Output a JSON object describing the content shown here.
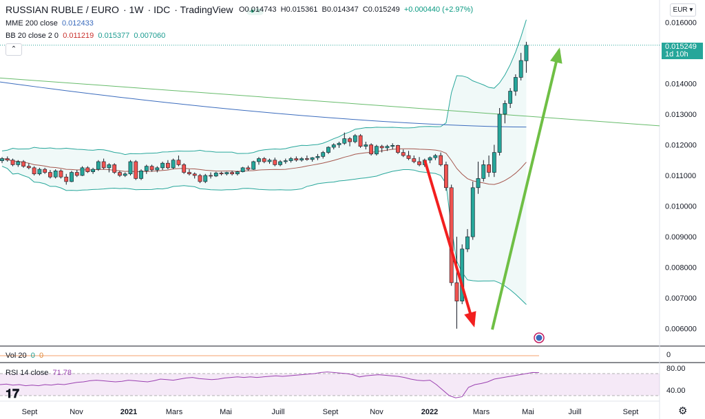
{
  "header": {
    "symbol": "RUSSIAN RUBLE / EURO",
    "interval": "1W",
    "exchange": "IDC",
    "source": "TradingView",
    "dots_icon": "market-status-icon",
    "ohlc": {
      "open": "O0.014743",
      "high": "H0.015361",
      "low": "B0.014347",
      "close": "C0.015249",
      "change": "+0.000440 (+2.97%)"
    }
  },
  "indicators": {
    "ema": {
      "label": "MME 200 close",
      "value": "0.012433"
    },
    "bb": {
      "label": "BB 20 close 2 0",
      "basis": "0.011219",
      "upper": "0.015377",
      "lower": "0.007060"
    },
    "vol": {
      "label": "Vol 20",
      "v1": "0",
      "v2": "0"
    },
    "rsi": {
      "label": "RSI 14 close",
      "value": "71.78"
    }
  },
  "controls": {
    "currency": "EUR",
    "collapse": "⌃",
    "price_tag_value": "0.015249",
    "price_tag_time": "1d 10h"
  },
  "colors": {
    "up": "#26a69a",
    "down": "#ef5350",
    "ema": "#3a6bbd",
    "sma_green": "#66bb6a",
    "bb_band": "#26a69a",
    "bb_basis": "#a5564d",
    "rsi": "#9a3fb0",
    "arrow_down": "#f21f1f",
    "arrow_up": "#6fbf45"
  },
  "chart_data": {
    "type": "candlestick",
    "price_axis": {
      "min": 0.0055,
      "max": 0.0165,
      "ticks": [
        "0.016000",
        "0.015000",
        "0.014000",
        "0.013000",
        "0.012000",
        "0.011000",
        "0.010000",
        "0.009000",
        "0.008000",
        "0.007000",
        "0.006000"
      ]
    },
    "rsi_axis": {
      "ticks": [
        "80.00",
        "40.00"
      ]
    },
    "vol_axis": {
      "ticks": [
        "0"
      ]
    },
    "time_labels": [
      "Sept",
      "Nov",
      "2021",
      "Mars",
      "Mai",
      "Juill",
      "Sept",
      "Nov",
      "2022",
      "Mars",
      "Mai",
      "Juill",
      "Sept"
    ],
    "candles": [
      [
        0.01148,
        0.0116,
        0.0114,
        0.01155
      ],
      [
        0.01155,
        0.01162,
        0.01145,
        0.0115
      ],
      [
        0.0115,
        0.01155,
        0.0113,
        0.01135
      ],
      [
        0.01135,
        0.0115,
        0.01128,
        0.01145
      ],
      [
        0.01145,
        0.0115,
        0.01125,
        0.0113
      ],
      [
        0.0113,
        0.0114,
        0.0112,
        0.01125
      ],
      [
        0.01125,
        0.0113,
        0.011,
        0.01105
      ],
      [
        0.01105,
        0.01125,
        0.011,
        0.0112
      ],
      [
        0.0112,
        0.01125,
        0.01105,
        0.0111
      ],
      [
        0.0111,
        0.01118,
        0.0109,
        0.01095
      ],
      [
        0.01095,
        0.0112,
        0.0109,
        0.01115
      ],
      [
        0.01115,
        0.0112,
        0.0109,
        0.01095
      ],
      [
        0.01095,
        0.01105,
        0.0107,
        0.0108
      ],
      [
        0.0108,
        0.01115,
        0.01078,
        0.0111
      ],
      [
        0.0111,
        0.01118,
        0.01095,
        0.011
      ],
      [
        0.011,
        0.0113,
        0.01098,
        0.01125
      ],
      [
        0.01125,
        0.0113,
        0.01108,
        0.01112
      ],
      [
        0.01112,
        0.01125,
        0.01105,
        0.0112
      ],
      [
        0.0112,
        0.0115,
        0.01115,
        0.01145
      ],
      [
        0.01145,
        0.01155,
        0.0112,
        0.01125
      ],
      [
        0.01125,
        0.0114,
        0.0111,
        0.01135
      ],
      [
        0.01135,
        0.0114,
        0.01105,
        0.0111
      ],
      [
        0.0111,
        0.01115,
        0.01095,
        0.011
      ],
      [
        0.011,
        0.0111,
        0.01095,
        0.01105
      ],
      [
        0.01105,
        0.0115,
        0.011,
        0.01145
      ],
      [
        0.01145,
        0.0115,
        0.01085,
        0.0109
      ],
      [
        0.0109,
        0.0112,
        0.01085,
        0.01115
      ],
      [
        0.01115,
        0.01135,
        0.01105,
        0.0113
      ],
      [
        0.0113,
        0.01135,
        0.01112,
        0.01118
      ],
      [
        0.01118,
        0.0113,
        0.0111,
        0.01125
      ],
      [
        0.01125,
        0.01145,
        0.01118,
        0.0114
      ],
      [
        0.0114,
        0.0115,
        0.0112,
        0.01125
      ],
      [
        0.01125,
        0.01155,
        0.0112,
        0.0115
      ],
      [
        0.0115,
        0.01165,
        0.0113,
        0.01135
      ],
      [
        0.01135,
        0.0114,
        0.01105,
        0.0111
      ],
      [
        0.0111,
        0.0112,
        0.011,
        0.01105
      ],
      [
        0.01105,
        0.0111,
        0.0109,
        0.011
      ],
      [
        0.011,
        0.01105,
        0.01075,
        0.0108
      ],
      [
        0.0108,
        0.01105,
        0.01075,
        0.011
      ],
      [
        0.011,
        0.0111,
        0.0109,
        0.01098
      ],
      [
        0.01098,
        0.01112,
        0.01095,
        0.01108
      ],
      [
        0.01108,
        0.01112,
        0.011,
        0.01105
      ],
      [
        0.01105,
        0.01112,
        0.011,
        0.0111
      ],
      [
        0.0111,
        0.01115,
        0.011,
        0.01105
      ],
      [
        0.01105,
        0.01115,
        0.011,
        0.01112
      ],
      [
        0.01112,
        0.01128,
        0.0111,
        0.01125
      ],
      [
        0.01125,
        0.01132,
        0.01115,
        0.0112
      ],
      [
        0.0112,
        0.01148,
        0.01118,
        0.01145
      ],
      [
        0.01145,
        0.0116,
        0.01135,
        0.01155
      ],
      [
        0.01155,
        0.0116,
        0.0114,
        0.01145
      ],
      [
        0.01145,
        0.01155,
        0.01138,
        0.0115
      ],
      [
        0.0115,
        0.01158,
        0.0113,
        0.01135
      ],
      [
        0.01135,
        0.0115,
        0.0113,
        0.01145
      ],
      [
        0.01145,
        0.01155,
        0.01138,
        0.01148
      ],
      [
        0.01148,
        0.0116,
        0.01142,
        0.01155
      ],
      [
        0.01155,
        0.01162,
        0.01145,
        0.0115
      ],
      [
        0.0115,
        0.0116,
        0.01145,
        0.01155
      ],
      [
        0.01155,
        0.01165,
        0.01148,
        0.01152
      ],
      [
        0.01152,
        0.0116,
        0.01145,
        0.01158
      ],
      [
        0.01158,
        0.0117,
        0.0115,
        0.01162
      ],
      [
        0.01162,
        0.0118,
        0.01155,
        0.01175
      ],
      [
        0.01175,
        0.01195,
        0.0117,
        0.01192
      ],
      [
        0.01192,
        0.01205,
        0.01185,
        0.012
      ],
      [
        0.012,
        0.0121,
        0.0119,
        0.01205
      ],
      [
        0.01205,
        0.0124,
        0.012,
        0.0122
      ],
      [
        0.0122,
        0.01225,
        0.01195,
        0.0121
      ],
      [
        0.0121,
        0.01235,
        0.01205,
        0.0123
      ],
      [
        0.0123,
        0.01235,
        0.0119,
        0.01195
      ],
      [
        0.01195,
        0.0121,
        0.01185,
        0.012
      ],
      [
        0.012,
        0.01205,
        0.01165,
        0.0117
      ],
      [
        0.0117,
        0.012,
        0.01165,
        0.01195
      ],
      [
        0.01195,
        0.012,
        0.01175,
        0.0119
      ],
      [
        0.0119,
        0.012,
        0.0118,
        0.01195
      ],
      [
        0.01195,
        0.01205,
        0.01185,
        0.01198
      ],
      [
        0.01198,
        0.012,
        0.0117,
        0.01175
      ],
      [
        0.01175,
        0.01185,
        0.0116,
        0.01165
      ],
      [
        0.01165,
        0.0118,
        0.0115,
        0.01155
      ],
      [
        0.01155,
        0.01165,
        0.0114,
        0.01145
      ],
      [
        0.01145,
        0.0116,
        0.0113,
        0.01135
      ],
      [
        0.01135,
        0.01155,
        0.01128,
        0.0115
      ],
      [
        0.0115,
        0.01162,
        0.0114,
        0.01158
      ],
      [
        0.01158,
        0.0117,
        0.0115,
        0.01165
      ],
      [
        0.01165,
        0.01175,
        0.0113,
        0.01135
      ],
      [
        0.01135,
        0.01145,
        0.0105,
        0.0106
      ],
      [
        0.0106,
        0.0107,
        0.0074,
        0.0075
      ],
      [
        0.0075,
        0.009,
        0.006,
        0.0069
      ],
      [
        0.0069,
        0.00875,
        0.0068,
        0.0086
      ],
      [
        0.0086,
        0.00925,
        0.0085,
        0.009
      ],
      [
        0.009,
        0.0108,
        0.0089,
        0.0106
      ],
      [
        0.0106,
        0.01145,
        0.0104,
        0.0109
      ],
      [
        0.0109,
        0.0115,
        0.0108,
        0.01135
      ],
      [
        0.01135,
        0.01165,
        0.01095,
        0.0111
      ],
      [
        0.0111,
        0.012,
        0.01095,
        0.01175
      ],
      [
        0.01175,
        0.0132,
        0.01165,
        0.013
      ],
      [
        0.013,
        0.01345,
        0.0127,
        0.01335
      ],
      [
        0.01335,
        0.01385,
        0.0132,
        0.01375
      ],
      [
        0.01375,
        0.0143,
        0.0136,
        0.0142
      ],
      [
        0.0142,
        0.015,
        0.0141,
        0.01475
      ],
      [
        0.01474,
        0.01536,
        0.01435,
        0.01525
      ]
    ],
    "ema200": [
      0.01405,
      0.01258
    ],
    "sma_green": [
      0.01418,
      0.01262
    ],
    "rsi_values": [
      50,
      51,
      49,
      50,
      48,
      49,
      48,
      50,
      49,
      51,
      50,
      52,
      54,
      55,
      57,
      58,
      57,
      56,
      55,
      56,
      58,
      57,
      56,
      55,
      57,
      60,
      59,
      58,
      60,
      62,
      63,
      61,
      60,
      59,
      60,
      62,
      63,
      64,
      63,
      64,
      63,
      64,
      65,
      66,
      65,
      66,
      67,
      68,
      69,
      70,
      72,
      73,
      72,
      71,
      70,
      68,
      64,
      66,
      67,
      68,
      67,
      66,
      65,
      63,
      60,
      58,
      57,
      58,
      50,
      40,
      30,
      26,
      28,
      45,
      50,
      52,
      55,
      60,
      62,
      64,
      66,
      68,
      70,
      72,
      71.78
    ]
  }
}
